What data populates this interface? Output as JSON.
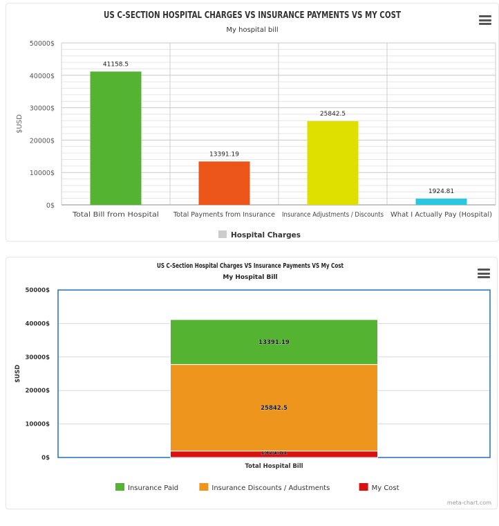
{
  "chart_data": [
    {
      "type": "bar",
      "title": "US C-SECTION HOSPITAL CHARGES VS INSURANCE PAYMENTS VS MY COST",
      "subtitle": "My hospital bill",
      "ylabel": "$USD",
      "xlabel": "",
      "ylim": [
        0,
        50000
      ],
      "yticks": [
        "0$",
        "10000$",
        "20000$",
        "30000$",
        "40000$",
        "50000$"
      ],
      "categories": [
        "Total Bill from Hospital",
        "Total Payments from Insurance",
        "Insurance Adjustments / Discounts",
        "What I Actually Pay (Hospital)"
      ],
      "values": [
        41158.5,
        13391.19,
        25842.5,
        1924.81
      ],
      "value_labels": [
        "41158.5",
        "13391.19",
        "25842.5",
        "1924.81"
      ],
      "bar_colors": [
        "#55b332",
        "#ec5519",
        "#dfe000",
        "#2ac8e0"
      ],
      "series": [
        {
          "name": "Hospital Charges",
          "values": [
            41158.5,
            13391.19,
            25842.5,
            1924.81
          ],
          "legend_color": "#cccccc"
        }
      ],
      "legend_placement": "bottom-center",
      "grid": true
    },
    {
      "type": "bar",
      "stacked": true,
      "title": "US C-Section Hospital Charges VS Insurance Payments VS My Cost",
      "subtitle": "My Hospital Bill",
      "ylabel": "$USD",
      "xlabel": "",
      "ylim": [
        0,
        50000
      ],
      "yticks": [
        "0$",
        "10000$",
        "20000$",
        "30000$",
        "40000$",
        "50000$"
      ],
      "categories": [
        "Total Hospital Bill"
      ],
      "series": [
        {
          "name": "My Cost",
          "values": [
            1924.81
          ],
          "label": "1924.81",
          "color": "#d71010"
        },
        {
          "name": "Insurance Discounts / Adustments",
          "values": [
            25842.5
          ],
          "label": "25842.5",
          "color": "#ee951e"
        },
        {
          "name": "Insurance Paid",
          "values": [
            13391.19
          ],
          "label": "13391.19",
          "color": "#55b332"
        }
      ],
      "legend": [
        {
          "name": "Insurance Paid",
          "color": "#55b332"
        },
        {
          "name": "Insurance Discounts / Adustments",
          "color": "#ee951e"
        },
        {
          "name": "My Cost",
          "color": "#d71010"
        }
      ],
      "legend_placement": "bottom-center",
      "grid": true,
      "credit": "meta-chart.com"
    }
  ]
}
